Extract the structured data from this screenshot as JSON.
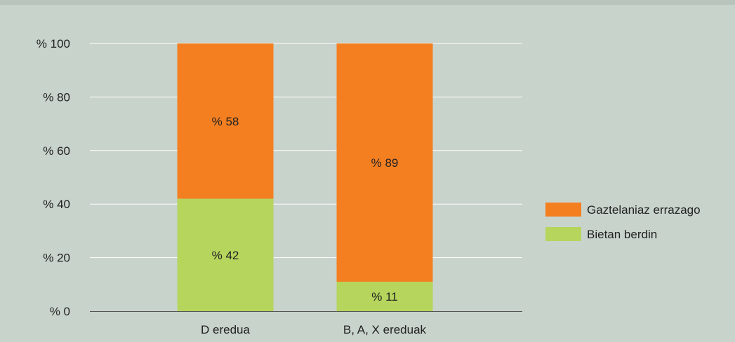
{
  "chart_data": {
    "type": "bar",
    "stacked": true,
    "categories": [
      "D eredua",
      "B, A, X ereduak"
    ],
    "series": [
      {
        "name": "Bietan berdin",
        "values": [
          42,
          11
        ],
        "labels": [
          "% 42",
          "% 11"
        ],
        "color": "#b5d55d"
      },
      {
        "name": "Gaztelaniaz errazago",
        "values": [
          58,
          89
        ],
        "labels": [
          "% 58",
          "% 89"
        ],
        "color": "#f47f21"
      }
    ],
    "legend_order": [
      "Gaztelaniaz errazago",
      "Bietan berdin"
    ],
    "yticks": [
      0,
      20,
      40,
      60,
      80,
      100
    ],
    "ytick_labels": [
      "% 0",
      "% 20",
      "% 40",
      "% 60",
      "% 80",
      "% 100"
    ],
    "ylim": [
      0,
      100
    ],
    "grid": true,
    "legend_position": "right",
    "title": "",
    "xlabel": "",
    "ylabel": ""
  },
  "colors": {
    "background": "#c8d3cb",
    "top_band": "#b9c4bc",
    "gridline": "#ffffff",
    "axis": "#555555",
    "text": "#222222"
  }
}
